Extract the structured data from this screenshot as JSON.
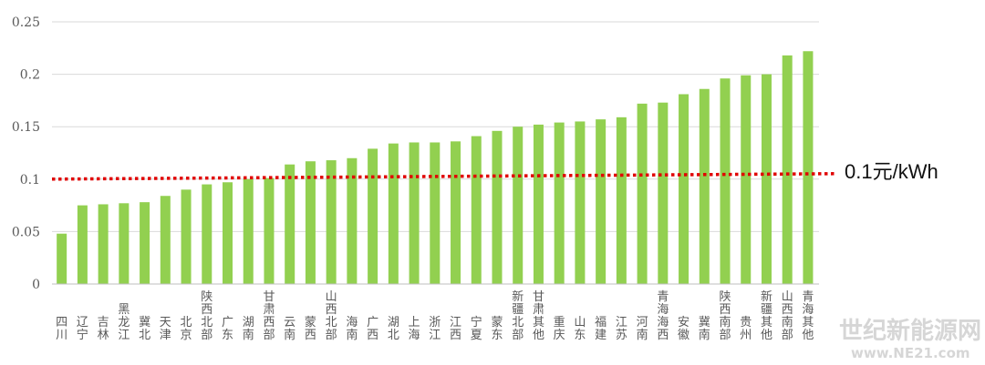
{
  "chart_data": {
    "type": "bar",
    "categories": [
      "四川",
      "辽宁",
      "吉林",
      "黑龙江",
      "冀北",
      "天津",
      "北京",
      "陕西北部",
      "广东",
      "湖南",
      "甘肃西部",
      "云南",
      "蒙西",
      "山西北部",
      "海南",
      "广西",
      "湖北",
      "上海",
      "浙江",
      "江西",
      "宁夏",
      "蒙东",
      "新疆北部",
      "甘肃其他",
      "重庆",
      "山东",
      "福建",
      "江苏",
      "河南",
      "青海海西",
      "安徽",
      "冀南",
      "陕西南部",
      "贵州",
      "新疆其他",
      "山西南部",
      "青海其他"
    ],
    "values": [
      0.048,
      0.075,
      0.076,
      0.077,
      0.078,
      0.084,
      0.09,
      0.095,
      0.097,
      0.1,
      0.101,
      0.114,
      0.117,
      0.118,
      0.12,
      0.129,
      0.134,
      0.135,
      0.135,
      0.136,
      0.141,
      0.146,
      0.15,
      0.152,
      0.154,
      0.155,
      0.157,
      0.159,
      0.172,
      0.173,
      0.181,
      0.186,
      0.196,
      0.199,
      0.2,
      0.218,
      0.222
    ],
    "ylim": [
      0,
      0.25
    ],
    "yticks": [
      "0",
      "0.05",
      "0.1",
      "0.15",
      "0.2",
      "0.25"
    ],
    "ytick_values": [
      0,
      0.05,
      0.1,
      0.15,
      0.2,
      0.25
    ],
    "grid": true,
    "bar_color": "#92d050",
    "reference_line": {
      "value": 0.1,
      "label": "0.1元/kWh",
      "color": "#e00000",
      "style": "dotted"
    }
  },
  "watermark": {
    "line1": "世纪新能源网",
    "line2": "www.NE21.com"
  }
}
